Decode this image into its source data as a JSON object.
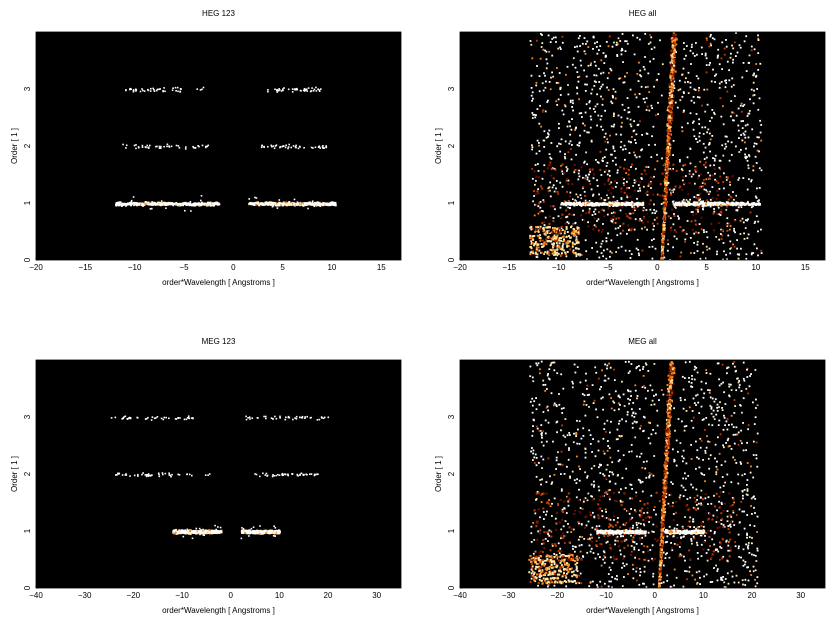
{
  "chart_data": [
    {
      "type": "heatmap",
      "title": "HEG 123",
      "xlabel": "order*Wavelength [ Angstroms ]",
      "ylabel": "Order [ 1 ]",
      "xlim": [
        -20,
        17
      ],
      "ylim": [
        0,
        4
      ],
      "xticks": [
        -20,
        -15,
        -10,
        -5,
        0,
        5,
        10,
        15
      ],
      "yticks": [
        0,
        1,
        2,
        3
      ],
      "background": "#000000",
      "colormap": [
        "#000000",
        "#6b0f00",
        "#c23a00",
        "#ff8c1a",
        "#ffe9a8",
        "#ffffff"
      ],
      "bands": [
        {
          "order": 1,
          "x_ranges": [
            [
              -12,
              -1.5
            ],
            [
              1.5,
              10.3
            ]
          ],
          "intensity": "high"
        },
        {
          "order": 2,
          "x_ranges": [
            [
              -11.5,
              -2.5
            ],
            [
              2.5,
              9.5
            ]
          ],
          "intensity": "sparse"
        },
        {
          "order": 3,
          "x_ranges": [
            [
              -11,
              -3
            ],
            [
              3,
              9
            ]
          ],
          "intensity": "sparse"
        }
      ],
      "background_events": "none"
    },
    {
      "type": "heatmap",
      "title": "HEG all",
      "xlabel": "order*Wavelength [ Angstroms ]",
      "ylabel": "Order [ 1 ]",
      "xlim": [
        -20,
        17
      ],
      "ylim": [
        0,
        4
      ],
      "xticks": [
        -20,
        -15,
        -10,
        -5,
        0,
        5,
        10,
        15
      ],
      "yticks": [
        0,
        1,
        2,
        3
      ],
      "background": "#000000",
      "colormap": [
        "#000000",
        "#6b0f00",
        "#c23a00",
        "#ff8c1a",
        "#ffe9a8",
        "#ffffff"
      ],
      "bands": [
        {
          "order": 1,
          "x_ranges": [
            [
              -10,
              -1.5
            ],
            [
              1.5,
              10.3
            ]
          ],
          "intensity": "high"
        }
      ],
      "background_events": "dense wedge-shaped scatter between x = -13 and x = 10.5, wedge of zero-order streak near x = 0 to 5"
    },
    {
      "type": "heatmap",
      "title": "MEG 123",
      "xlabel": "order*Wavelength [ Angstroms ]",
      "ylabel": "Order [ 1 ]",
      "xlim": [
        -40,
        35
      ],
      "ylim": [
        0,
        4
      ],
      "xticks": [
        -40,
        -30,
        -20,
        -10,
        0,
        10,
        20,
        30
      ],
      "yticks": [
        0,
        1,
        2,
        3
      ],
      "background": "#000000",
      "colormap": [
        "#000000",
        "#6b0f00",
        "#c23a00",
        "#ff8c1a",
        "#ffe9a8",
        "#ffffff"
      ],
      "bands": [
        {
          "order": 1,
          "x_ranges": [
            [
              -12,
              -2
            ],
            [
              2,
              10
            ]
          ],
          "intensity": "high"
        },
        {
          "order": 2,
          "x_ranges": [
            [
              -24,
              -4
            ],
            [
              4,
              18
            ]
          ],
          "intensity": "sparse"
        },
        {
          "order": 3,
          "x_ranges": [
            [
              -25,
              -6
            ],
            [
              3,
              20
            ]
          ],
          "intensity": "sparse"
        }
      ],
      "background_events": "none"
    },
    {
      "type": "heatmap",
      "title": "MEG all",
      "xlabel": "order*Wavelength [ Angstroms ]",
      "ylabel": "Order [ 1 ]",
      "xlim": [
        -40,
        35
      ],
      "ylim": [
        0,
        4
      ],
      "xticks": [
        -40,
        -30,
        -20,
        -10,
        0,
        10,
        20,
        30
      ],
      "yticks": [
        0,
        1,
        2,
        3
      ],
      "background": "#000000",
      "colormap": [
        "#000000",
        "#6b0f00",
        "#c23a00",
        "#ff8c1a",
        "#ffe9a8",
        "#ffffff"
      ],
      "bands": [
        {
          "order": 1,
          "x_ranges": [
            [
              -12,
              -2
            ],
            [
              2,
              10
            ]
          ],
          "intensity": "high"
        }
      ],
      "background_events": "dense wedge-shaped scatter between x = -26 and x = 21, bright streaks near x = 0 to 5"
    }
  ]
}
